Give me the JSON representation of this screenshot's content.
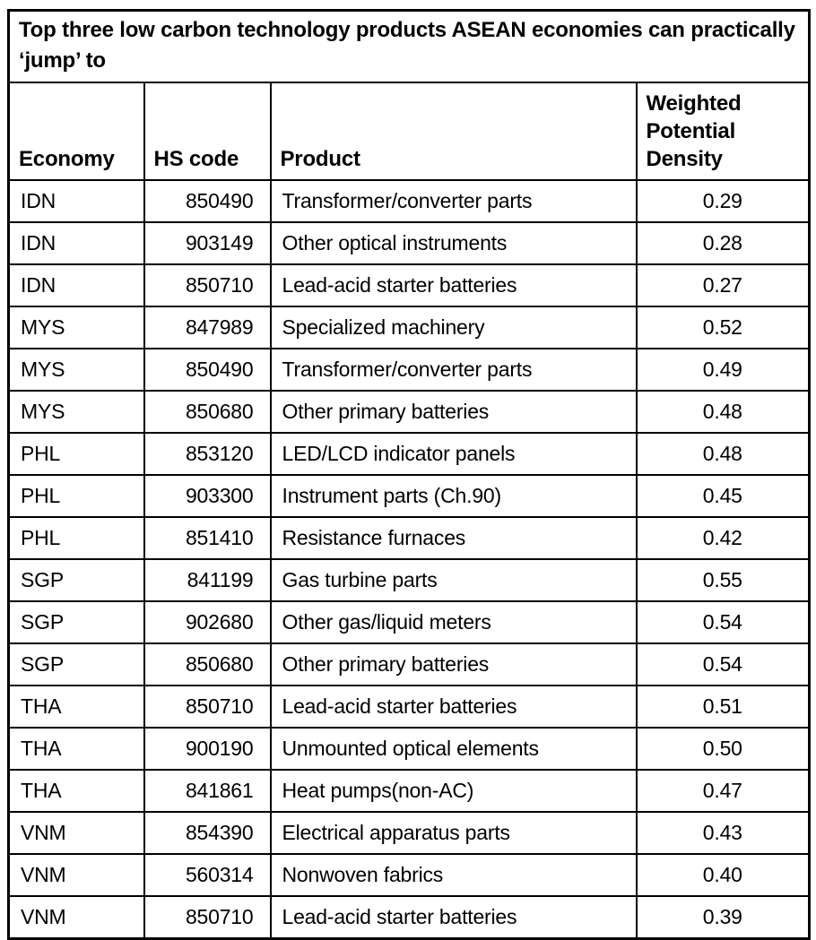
{
  "page": {
    "background_color": "#ffffff",
    "border_color": "#000000",
    "text_color": "#000000"
  },
  "chart_data": {
    "type": "table",
    "title": "Top three low carbon technology products ASEAN economies can practically ‘jump’ to",
    "columns": [
      "Economy",
      "HS code",
      "Product",
      "Weighted Potential Density"
    ],
    "rows": [
      [
        "IDN",
        "850490",
        "Transformer/converter parts",
        "0.29"
      ],
      [
        "IDN",
        "903149",
        "Other optical instruments",
        "0.28"
      ],
      [
        "IDN",
        "850710",
        "Lead-acid starter batteries",
        "0.27"
      ],
      [
        "MYS",
        "847989",
        "Specialized machinery",
        "0.52"
      ],
      [
        "MYS",
        "850490",
        "Transformer/converter parts",
        "0.49"
      ],
      [
        "MYS",
        "850680",
        "Other primary batteries",
        "0.48"
      ],
      [
        "PHL",
        "853120",
        "LED/LCD indicator panels",
        "0.48"
      ],
      [
        "PHL",
        "903300",
        "Instrument parts (Ch.90)",
        "0.45"
      ],
      [
        "PHL",
        "851410",
        "Resistance furnaces",
        "0.42"
      ],
      [
        "SGP",
        "841199",
        "Gas turbine parts",
        "0.55"
      ],
      [
        "SGP",
        "902680",
        "Other gas/liquid meters",
        "0.54"
      ],
      [
        "SGP",
        "850680",
        "Other primary batteries",
        "0.54"
      ],
      [
        "THA",
        "850710",
        "Lead-acid starter batteries",
        "0.51"
      ],
      [
        "THA",
        "900190",
        "Unmounted optical elements",
        "0.50"
      ],
      [
        "THA",
        "841861",
        "Heat pumps(non-AC)",
        "0.47"
      ],
      [
        "VNM",
        "854390",
        "Electrical apparatus parts",
        "0.43"
      ],
      [
        "VNM",
        "560314",
        "Nonwoven fabrics",
        "0.40"
      ],
      [
        "VNM",
        "850710",
        "Lead-acid starter batteries",
        "0.39"
      ]
    ]
  }
}
